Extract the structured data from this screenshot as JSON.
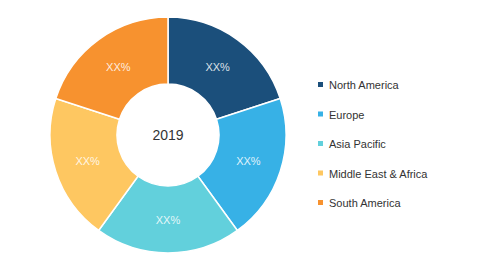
{
  "chart_data": {
    "type": "pie",
    "title": "2019",
    "categories": [
      "North America",
      "Europe",
      "Asia Pacific",
      "Middle East & Africa",
      "South America"
    ],
    "values": [
      20,
      20,
      20,
      20,
      20
    ],
    "value_labels": [
      "XX%",
      "XX%",
      "XX%",
      "XX%",
      "XX%"
    ],
    "colors": [
      "#1b4f7b",
      "#37b1e6",
      "#62d0dc",
      "#fec761",
      "#f7922f"
    ],
    "data_labels": true,
    "legend": "right"
  }
}
